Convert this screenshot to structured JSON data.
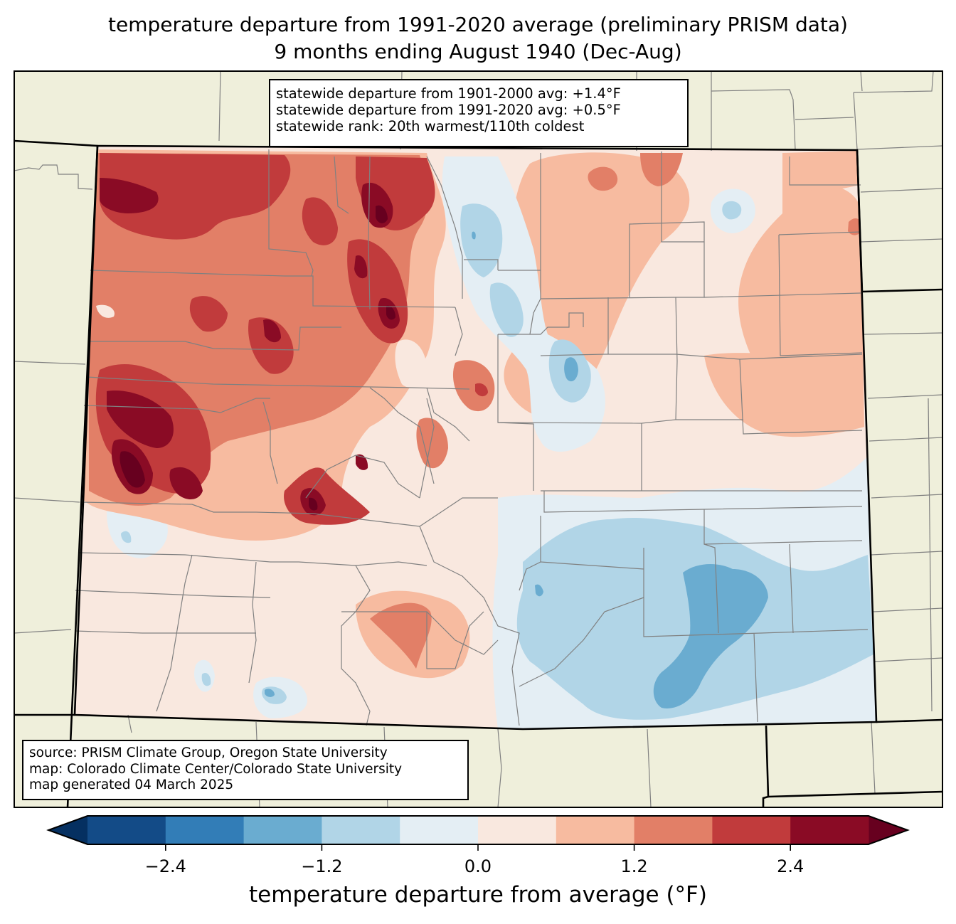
{
  "title": {
    "line1": "temperature departure from 1991-2020 average (preliminary PRISM data)",
    "line2": "9 months ending August 1940 (Dec-Aug)"
  },
  "stats_box": {
    "line1": "statewide departure from 1901-2000 avg: +1.4°F",
    "line2": "statewide departure from 1991-2020 avg: +0.5°F",
    "line3": "statewide rank: 20th warmest/110th coldest"
  },
  "credit_box": {
    "line1": "source: PRISM Climate Group, Oregon State University",
    "line2": "map: Colorado Climate Center/Colorado State University",
    "line3": "map generated 04 March 2025"
  },
  "colorbar": {
    "label": "temperature departure from average (°F)",
    "levels": [
      -3.0,
      -2.4,
      -1.8,
      -1.2,
      -0.6,
      0.0,
      0.6,
      1.2,
      1.8,
      2.4,
      3.0
    ],
    "colors": [
      "#134b87",
      "#327db7",
      "#6aacd0",
      "#b1d5e7",
      "#e4eef4",
      "#f9e8df",
      "#f7bba0",
      "#e27f67",
      "#c13b3c",
      "#8a0b25"
    ],
    "under_color": "#053061",
    "over_color": "#67001f",
    "ticks": [
      {
        "value": -2.4,
        "label": "−2.4"
      },
      {
        "value": -1.2,
        "label": "−1.2"
      },
      {
        "value": 0.0,
        "label": "0.0"
      },
      {
        "value": 1.2,
        "label": "1.2"
      },
      {
        "value": 2.4,
        "label": "2.4"
      }
    ]
  },
  "map_colors": {
    "land": "#efefdb",
    "state_border": "#000000",
    "county_border": "#808080"
  }
}
